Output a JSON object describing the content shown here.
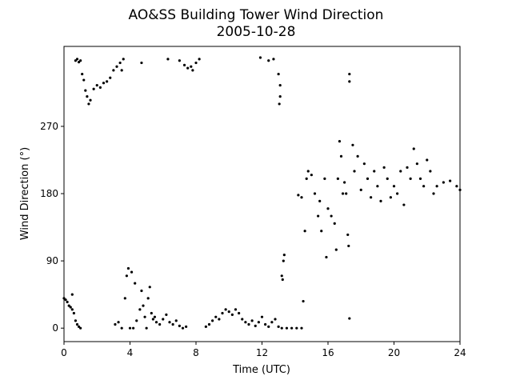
{
  "chart_data": {
    "type": "scatter",
    "title": "AO&SS Building Tower Wind Direction",
    "subtitle": "2005-10-28",
    "xlabel": "Time (UTC)",
    "ylabel": "Wind Direction (°)",
    "color": "#000000",
    "xlim": [
      0,
      24
    ],
    "xticks": [
      0,
      4,
      8,
      12,
      16,
      20,
      24
    ],
    "ylim": [
      -18,
      377
    ],
    "yticks": [
      0,
      90,
      180,
      270
    ],
    "x": [
      0,
      0.1,
      0.2,
      0.3,
      0.4,
      0.5,
      0.5,
      0.6,
      0.7,
      0.8,
      0.9,
      1.0,
      0.7,
      0.8,
      0.9,
      1.0,
      1.1,
      1.2,
      1.3,
      1.4,
      1.5,
      1.6,
      1.8,
      2.0,
      2.2,
      2.4,
      2.6,
      2.8,
      3.0,
      3.2,
      3.4,
      3.6,
      3.5,
      3.1,
      3.3,
      3.5,
      3.7,
      3.8,
      3.9,
      4.0,
      4.1,
      4.2,
      4.3,
      4.4,
      4.6,
      4.7,
      4.8,
      4.9,
      5.0,
      5.1,
      5.2,
      5.3,
      5.4,
      5.5,
      5.6,
      5.8,
      6.0,
      6.2,
      6.4,
      6.6,
      6.8,
      7.0,
      7.2,
      7.4,
      4.7,
      6.3,
      7.0,
      7.3,
      7.5,
      7.7,
      8.0,
      8.2,
      7.8,
      8.6,
      8.8,
      9.0,
      9.2,
      9.4,
      9.6,
      9.8,
      10.0,
      10.2,
      10.4,
      10.6,
      10.8,
      11.0,
      11.2,
      11.4,
      11.6,
      11.8,
      12.0,
      12.2,
      12.4,
      12.6,
      12.8,
      13.0,
      13.2,
      13.5,
      13.8,
      14.1,
      14.4,
      14.5,
      11.9,
      12.4,
      12.7,
      13.0,
      13.1,
      13.05,
      13.1,
      13.2,
      13.25,
      13.3,
      13.35,
      14.2,
      14.4,
      14.6,
      14.7,
      14.8,
      15.0,
      15.2,
      15.4,
      15.5,
      15.6,
      15.8,
      15.9,
      16.0,
      16.2,
      16.4,
      16.5,
      16.6,
      16.7,
      16.8,
      16.9,
      17.0,
      17.1,
      17.2,
      17.25,
      17.3,
      17.3,
      17.3,
      17.5,
      17.6,
      17.8,
      18.0,
      18.2,
      18.4,
      18.6,
      18.8,
      19.0,
      19.2,
      19.4,
      19.6,
      19.8,
      20.0,
      20.2,
      20.4,
      20.6,
      20.8,
      21.0,
      21.2,
      21.4,
      21.6,
      21.8,
      22.0,
      22.2,
      22.4,
      22.6,
      23.0,
      23.4,
      23.8,
      24.0
    ],
    "values": [
      40,
      38,
      35,
      30,
      28,
      45,
      25,
      20,
      10,
      5,
      2,
      0,
      358,
      360,
      356,
      358,
      340,
      332,
      318,
      310,
      300,
      305,
      320,
      325,
      322,
      328,
      330,
      335,
      345,
      350,
      355,
      360,
      345,
      5,
      8,
      0,
      40,
      70,
      80,
      0,
      75,
      0,
      60,
      10,
      25,
      50,
      30,
      15,
      0,
      40,
      55,
      20,
      12,
      15,
      8,
      5,
      12,
      18,
      8,
      5,
      10,
      3,
      0,
      2,
      355,
      360,
      358,
      352,
      348,
      350,
      355,
      360,
      345,
      2,
      5,
      10,
      15,
      12,
      20,
      25,
      22,
      18,
      25,
      20,
      12,
      8,
      5,
      10,
      3,
      8,
      15,
      5,
      2,
      8,
      12,
      2,
      0,
      0,
      0,
      0,
      0,
      36,
      362,
      358,
      360,
      340,
      325,
      300,
      310,
      70,
      65,
      90,
      98,
      178,
      175,
      130,
      200,
      210,
      205,
      180,
      150,
      170,
      130,
      200,
      95,
      160,
      150,
      140,
      105,
      200,
      250,
      230,
      180,
      195,
      180,
      125,
      110,
      330,
      340,
      13,
      245,
      210,
      230,
      185,
      220,
      200,
      175,
      210,
      190,
      170,
      215,
      200,
      175,
      190,
      180,
      210,
      165,
      215,
      200,
      240,
      220,
      200,
      190,
      225,
      210,
      180,
      190,
      195,
      197,
      190,
      185
    ]
  }
}
